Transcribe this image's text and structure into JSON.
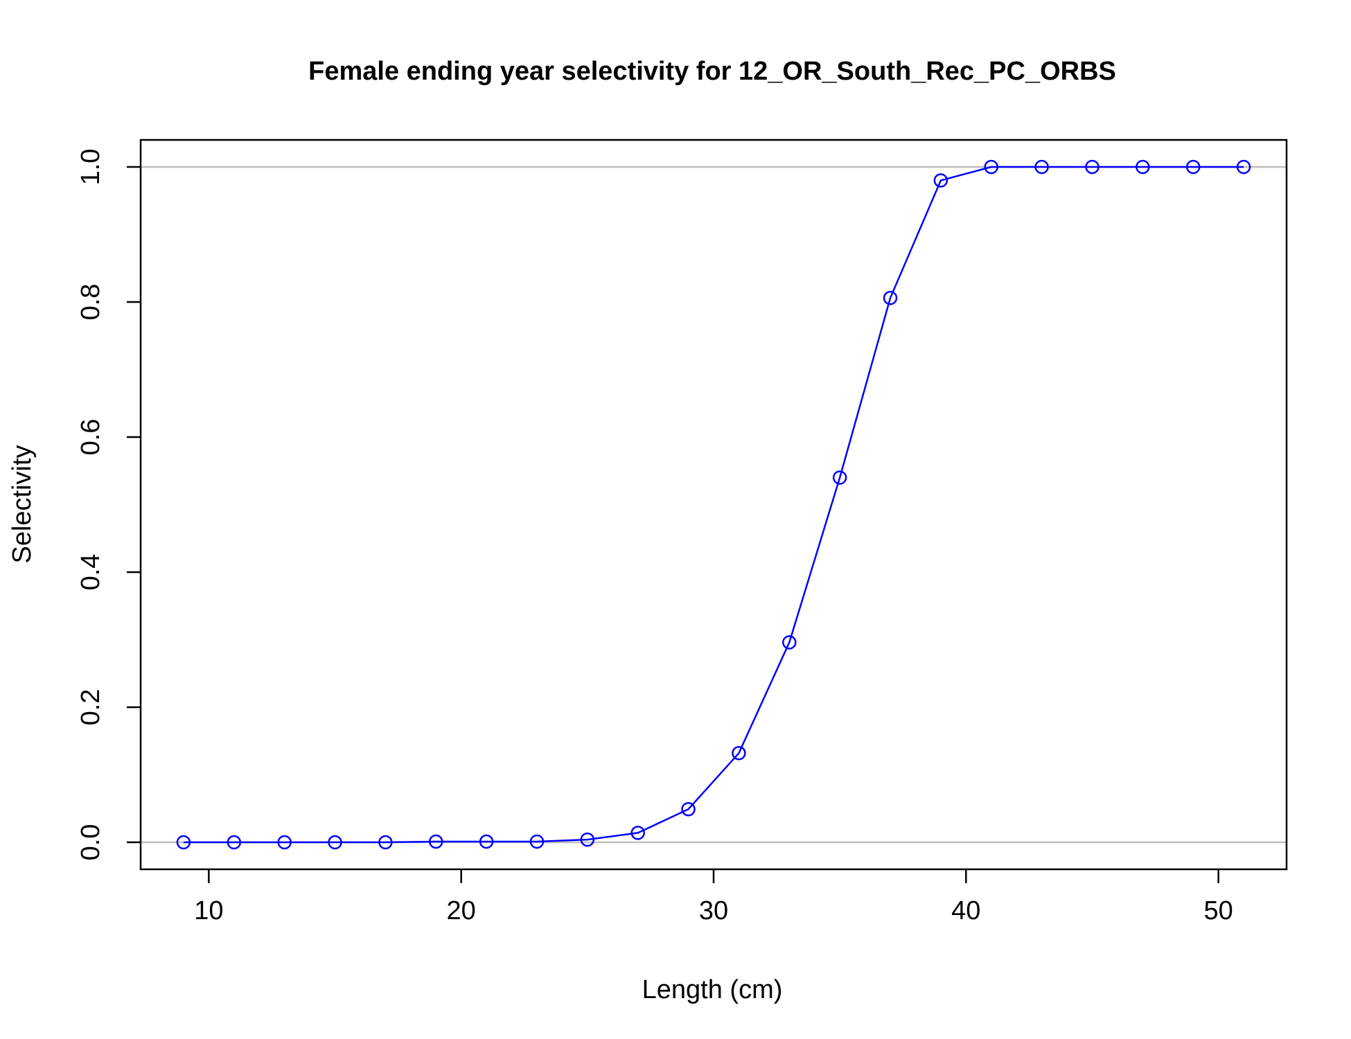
{
  "chart_data": {
    "type": "line",
    "title": "Female ending year selectivity for 12_OR_South_Rec_PC_ORBS",
    "xlabel": "Length (cm)",
    "ylabel": "Selectivity",
    "xlim": [
      7.3,
      52.7
    ],
    "ylim": [
      -0.04,
      1.04
    ],
    "x_ticks": [
      10,
      20,
      30,
      40,
      50
    ],
    "y_ticks": [
      0.0,
      0.2,
      0.4,
      0.6,
      0.8,
      1.0
    ],
    "x_tick_labels": [
      "10",
      "20",
      "30",
      "40",
      "50"
    ],
    "y_tick_labels": [
      "0.0",
      "0.2",
      "0.4",
      "0.6",
      "0.8",
      "1.0"
    ],
    "reference_lines_y": [
      0,
      1
    ],
    "grid": false,
    "series": [
      {
        "color": "#0000ff",
        "marker": "open-circle",
        "x": [
          9,
          11,
          13,
          15,
          17,
          19,
          21,
          23,
          25,
          27,
          29,
          31,
          33,
          35,
          37,
          39,
          41,
          43,
          45,
          47,
          49,
          51
        ],
        "y": [
          0.0,
          0.0,
          0.0,
          0.0,
          0.0,
          0.001,
          0.001,
          0.001,
          0.004,
          0.014,
          0.049,
          0.132,
          0.296,
          0.54,
          0.806,
          0.98,
          1.0,
          1.0,
          1.0,
          1.0,
          1.0,
          1.0
        ]
      }
    ],
    "colors": {
      "series": "#0000ff",
      "reference_line": "#bebebe",
      "axis": "#000000"
    }
  }
}
